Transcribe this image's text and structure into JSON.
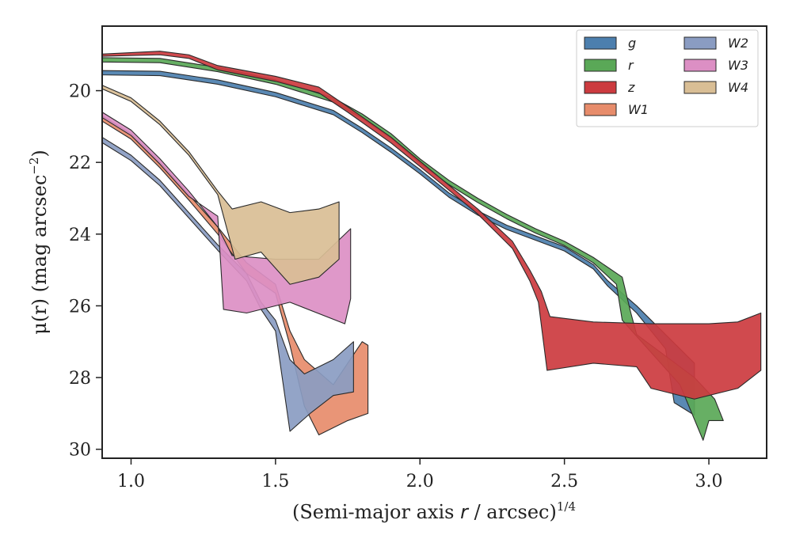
{
  "chart_data": {
    "type": "area",
    "xlabel": "(Semi-major axis r / arcsec)^1/4",
    "ylabel": "μ(r) (mag arcsec^−2)",
    "xlim": [
      0.9,
      3.2
    ],
    "ylim": [
      30.25,
      18.2
    ],
    "y_inverted": true,
    "x_ticks": [
      1.0,
      1.5,
      2.0,
      2.5,
      3.0
    ],
    "x_tick_labels": [
      "1.0",
      "1.5",
      "2.0",
      "2.5",
      "3.0"
    ],
    "y_ticks": [
      20,
      22,
      24,
      26,
      28,
      30
    ],
    "y_tick_labels": [
      "20",
      "22",
      "24",
      "26",
      "28",
      "30"
    ],
    "grid": false,
    "legend_position": "top-right",
    "legend_columns": 2,
    "series": [
      {
        "name": "g",
        "color": "#4c7fae",
        "upper": [
          [
            0.9,
            19.44
          ],
          [
            1.1,
            19.46
          ],
          [
            1.3,
            19.7
          ],
          [
            1.5,
            20.05
          ],
          [
            1.7,
            20.55
          ],
          [
            1.8,
            21.05
          ],
          [
            1.9,
            21.6
          ],
          [
            2.0,
            22.2
          ],
          [
            2.1,
            22.85
          ],
          [
            2.2,
            23.35
          ],
          [
            2.3,
            23.75
          ],
          [
            2.4,
            24.05
          ],
          [
            2.5,
            24.35
          ],
          [
            2.6,
            24.85
          ],
          [
            2.65,
            25.3
          ],
          [
            2.75,
            26.0
          ],
          [
            2.85,
            26.8
          ],
          [
            2.95,
            27.6
          ],
          [
            2.95,
            28.9
          ]
        ],
        "lower": [
          [
            0.9,
            19.56
          ],
          [
            1.1,
            19.58
          ],
          [
            1.3,
            19.82
          ],
          [
            1.5,
            20.17
          ],
          [
            1.7,
            20.67
          ],
          [
            1.8,
            21.17
          ],
          [
            1.9,
            21.72
          ],
          [
            2.0,
            22.32
          ],
          [
            2.1,
            22.97
          ],
          [
            2.2,
            23.47
          ],
          [
            2.3,
            23.87
          ],
          [
            2.4,
            24.17
          ],
          [
            2.5,
            24.47
          ],
          [
            2.6,
            24.97
          ],
          [
            2.65,
            25.45
          ],
          [
            2.75,
            26.2
          ],
          [
            2.85,
            27.2
          ],
          [
            2.88,
            28.7
          ],
          [
            2.95,
            29.05
          ]
        ]
      },
      {
        "name": "r",
        "color": "#5aa857",
        "upper": [
          [
            0.9,
            19.08
          ],
          [
            1.1,
            19.1
          ],
          [
            1.3,
            19.35
          ],
          [
            1.5,
            19.7
          ],
          [
            1.7,
            20.2
          ],
          [
            1.8,
            20.65
          ],
          [
            1.9,
            21.2
          ],
          [
            2.0,
            21.9
          ],
          [
            2.1,
            22.5
          ],
          [
            2.2,
            23.0
          ],
          [
            2.3,
            23.45
          ],
          [
            2.4,
            23.85
          ],
          [
            2.5,
            24.2
          ],
          [
            2.6,
            24.65
          ],
          [
            2.7,
            25.2
          ],
          [
            2.73,
            26.2
          ],
          [
            2.75,
            26.8
          ],
          [
            2.85,
            27.4
          ],
          [
            2.95,
            28.0
          ],
          [
            3.02,
            28.6
          ],
          [
            3.05,
            29.2
          ]
        ],
        "lower": [
          [
            0.9,
            19.2
          ],
          [
            1.1,
            19.22
          ],
          [
            1.3,
            19.47
          ],
          [
            1.5,
            19.82
          ],
          [
            1.7,
            20.32
          ],
          [
            1.8,
            20.77
          ],
          [
            1.9,
            21.32
          ],
          [
            2.0,
            22.02
          ],
          [
            2.1,
            22.62
          ],
          [
            2.2,
            23.12
          ],
          [
            2.3,
            23.57
          ],
          [
            2.4,
            23.97
          ],
          [
            2.5,
            24.32
          ],
          [
            2.6,
            24.8
          ],
          [
            2.68,
            25.4
          ],
          [
            2.7,
            26.4
          ],
          [
            2.8,
            27.3
          ],
          [
            2.9,
            28.2
          ],
          [
            2.98,
            29.75
          ],
          [
            3.0,
            29.2
          ]
        ]
      },
      {
        "name": "z",
        "color": "#cc3b3f",
        "upper": [
          [
            0.9,
            18.98
          ],
          [
            1.1,
            18.9
          ],
          [
            1.2,
            19.0
          ],
          [
            1.3,
            19.3
          ],
          [
            1.5,
            19.6
          ],
          [
            1.65,
            19.9
          ],
          [
            1.75,
            20.45
          ],
          [
            1.9,
            21.3
          ],
          [
            2.05,
            22.3
          ],
          [
            2.2,
            23.3
          ],
          [
            2.32,
            24.2
          ],
          [
            2.38,
            25.0
          ],
          [
            2.42,
            25.6
          ],
          [
            2.45,
            26.3
          ],
          [
            2.6,
            26.45
          ],
          [
            2.8,
            26.5
          ],
          [
            3.0,
            26.5
          ],
          [
            3.1,
            26.45
          ],
          [
            3.18,
            26.2
          ]
        ],
        "lower": [
          [
            0.9,
            19.04
          ],
          [
            1.1,
            19.0
          ],
          [
            1.2,
            19.1
          ],
          [
            1.3,
            19.42
          ],
          [
            1.5,
            19.74
          ],
          [
            1.65,
            20.06
          ],
          [
            1.75,
            20.6
          ],
          [
            1.9,
            21.46
          ],
          [
            2.05,
            22.44
          ],
          [
            2.2,
            23.44
          ],
          [
            2.32,
            24.4
          ],
          [
            2.38,
            25.3
          ],
          [
            2.41,
            25.9
          ],
          [
            2.44,
            27.8
          ],
          [
            2.6,
            27.6
          ],
          [
            2.75,
            27.7
          ],
          [
            2.8,
            28.3
          ],
          [
            2.95,
            28.6
          ],
          [
            3.1,
            28.3
          ],
          [
            3.18,
            27.8
          ]
        ]
      },
      {
        "name": "W1",
        "color": "#e78c6b",
        "upper": [
          [
            0.9,
            20.7
          ],
          [
            1.0,
            21.2
          ],
          [
            1.1,
            22.0
          ],
          [
            1.2,
            22.9
          ],
          [
            1.3,
            23.8
          ],
          [
            1.4,
            24.8
          ],
          [
            1.5,
            25.4
          ],
          [
            1.55,
            26.7
          ],
          [
            1.6,
            27.5
          ],
          [
            1.7,
            28.2
          ],
          [
            1.8,
            27.0
          ],
          [
            1.82,
            27.1
          ]
        ],
        "lower": [
          [
            0.9,
            20.85
          ],
          [
            1.0,
            21.35
          ],
          [
            1.1,
            22.15
          ],
          [
            1.2,
            23.05
          ],
          [
            1.3,
            24.0
          ],
          [
            1.4,
            25.1
          ],
          [
            1.5,
            25.65
          ],
          [
            1.55,
            27.1
          ],
          [
            1.6,
            28.8
          ],
          [
            1.65,
            29.6
          ],
          [
            1.75,
            29.2
          ],
          [
            1.82,
            29.0
          ]
        ]
      },
      {
        "name": "W2",
        "color": "#8a9cc2",
        "upper": [
          [
            0.9,
            21.3
          ],
          [
            1.0,
            21.8
          ],
          [
            1.1,
            22.5
          ],
          [
            1.2,
            23.4
          ],
          [
            1.3,
            24.3
          ],
          [
            1.4,
            25.1
          ],
          [
            1.45,
            25.9
          ],
          [
            1.5,
            26.4
          ],
          [
            1.55,
            27.5
          ],
          [
            1.6,
            27.9
          ],
          [
            1.7,
            27.5
          ],
          [
            1.77,
            27.0
          ]
        ],
        "lower": [
          [
            0.9,
            21.45
          ],
          [
            1.0,
            21.95
          ],
          [
            1.1,
            22.65
          ],
          [
            1.2,
            23.55
          ],
          [
            1.3,
            24.45
          ],
          [
            1.4,
            25.3
          ],
          [
            1.45,
            26.1
          ],
          [
            1.5,
            26.7
          ],
          [
            1.55,
            29.5
          ],
          [
            1.62,
            29.0
          ],
          [
            1.7,
            28.5
          ],
          [
            1.77,
            28.4
          ]
        ]
      },
      {
        "name": "W3",
        "color": "#dc8fc4",
        "upper": [
          [
            0.9,
            20.6
          ],
          [
            1.0,
            21.1
          ],
          [
            1.1,
            21.9
          ],
          [
            1.2,
            22.8
          ],
          [
            1.25,
            23.3
          ],
          [
            1.3,
            23.8
          ],
          [
            1.35,
            24.6
          ],
          [
            1.5,
            24.7
          ],
          [
            1.65,
            24.7
          ],
          [
            1.76,
            23.85
          ]
        ],
        "lower": [
          [
            0.9,
            20.75
          ],
          [
            1.0,
            21.25
          ],
          [
            1.1,
            22.05
          ],
          [
            1.2,
            22.95
          ],
          [
            1.3,
            23.5
          ],
          [
            1.32,
            26.1
          ],
          [
            1.4,
            26.2
          ],
          [
            1.55,
            25.9
          ],
          [
            1.74,
            26.5
          ],
          [
            1.76,
            25.8
          ]
        ]
      },
      {
        "name": "W4",
        "color": "#d9be95",
        "upper": [
          [
            0.9,
            19.85
          ],
          [
            1.0,
            20.2
          ],
          [
            1.1,
            20.85
          ],
          [
            1.2,
            21.7
          ],
          [
            1.3,
            22.8
          ],
          [
            1.35,
            23.3
          ],
          [
            1.45,
            23.1
          ],
          [
            1.55,
            23.4
          ],
          [
            1.65,
            23.3
          ],
          [
            1.72,
            23.1
          ]
        ],
        "lower": [
          [
            0.9,
            19.95
          ],
          [
            1.0,
            20.3
          ],
          [
            1.1,
            20.95
          ],
          [
            1.2,
            21.8
          ],
          [
            1.3,
            22.9
          ],
          [
            1.36,
            24.7
          ],
          [
            1.45,
            24.5
          ],
          [
            1.55,
            25.4
          ],
          [
            1.65,
            25.2
          ],
          [
            1.72,
            24.7
          ]
        ]
      }
    ]
  }
}
